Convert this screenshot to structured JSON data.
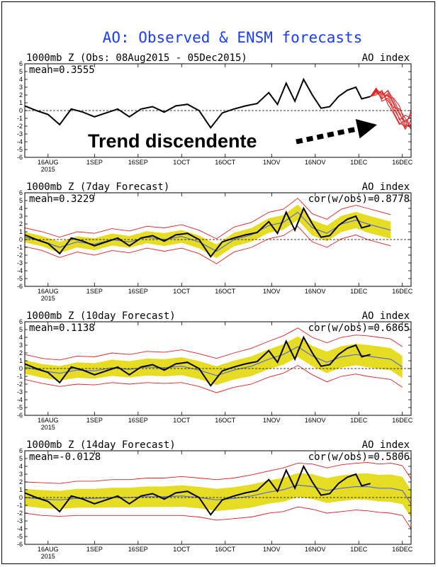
{
  "title": "AO: Observed & ENSM forecasts",
  "annotation": "Trend discendente",
  "colors": {
    "title": "#1a3cff",
    "observed": "#000000",
    "ensemble_mean": "#5a6bd8",
    "spread_fill": "#e6dc23",
    "spread_edge": "#e02020",
    "forecast_members": "#e02020",
    "zero_line": "#000000"
  },
  "axes": {
    "x_ticks": [
      "16AUG",
      "1SEP",
      "16SEP",
      "1OCT",
      "16OCT",
      "1NOV",
      "16NOV",
      "1DEC",
      "16DEC"
    ],
    "x_tick_dates": [
      "2015-08-16",
      "2015-09-01",
      "2015-09-16",
      "2015-10-01",
      "2015-10-16",
      "2015-11-01",
      "2015-11-16",
      "2015-12-01",
      "2015-12-16"
    ],
    "x_year_label": "2015",
    "x_start": "2015-08-08",
    "x_end": "2015-12-19",
    "y_ticks": [
      6,
      5,
      4,
      3,
      2,
      1,
      0,
      -1,
      -2,
      -3,
      -4,
      -5,
      -6
    ],
    "ylim": [
      -6,
      6
    ]
  },
  "chart_data": [
    {
      "type": "line",
      "title": "1000mb Z (Obs: 08Aug2015 - 05Dec2015)",
      "right_label": "AO index",
      "mean_label": "mean=0.3555",
      "cor_label": "",
      "series": [
        {
          "kind": "observed",
          "x": [
            "2015-08-08",
            "2015-08-12",
            "2015-08-16",
            "2015-08-20",
            "2015-08-24",
            "2015-08-28",
            "2015-09-01",
            "2015-09-05",
            "2015-09-09",
            "2015-09-13",
            "2015-09-17",
            "2015-09-21",
            "2015-09-25",
            "2015-09-29",
            "2015-10-03",
            "2015-10-07",
            "2015-10-11",
            "2015-10-15",
            "2015-10-19",
            "2015-10-23",
            "2015-10-27",
            "2015-10-31",
            "2015-11-03",
            "2015-11-06",
            "2015-11-09",
            "2015-11-12",
            "2015-11-15",
            "2015-11-18",
            "2015-11-21",
            "2015-11-24",
            "2015-11-27",
            "2015-11-30",
            "2015-12-02",
            "2015-12-05"
          ],
          "y": [
            0.6,
            0.0,
            -0.5,
            -1.8,
            0.2,
            -0.2,
            -0.8,
            -0.3,
            0.2,
            -0.8,
            0.2,
            0.5,
            -0.2,
            0.6,
            0.8,
            0.0,
            -2.2,
            -0.3,
            0.2,
            0.6,
            0.9,
            2.3,
            0.8,
            3.5,
            1.2,
            4.0,
            2.0,
            0.3,
            0.5,
            1.8,
            2.6,
            3.0,
            1.5,
            1.8
          ]
        },
        {
          "kind": "forecast_members",
          "x": [
            "2015-12-05",
            "2015-12-07",
            "2015-12-09",
            "2015-12-11",
            "2015-12-13",
            "2015-12-15",
            "2015-12-17",
            "2015-12-19"
          ],
          "members": [
            [
              1.8,
              2.8,
              2.0,
              2.5,
              1.0,
              -0.5,
              -1.5,
              -0.5
            ],
            [
              1.8,
              2.4,
              1.6,
              2.0,
              0.2,
              -1.0,
              -2.4,
              -1.2
            ],
            [
              1.8,
              2.9,
              1.2,
              1.6,
              -0.2,
              -1.6,
              -2.0,
              -1.8
            ],
            [
              1.8,
              2.2,
              2.4,
              1.2,
              0.4,
              0.2,
              -1.0,
              -2.0
            ],
            [
              1.8,
              2.6,
              1.8,
              2.6,
              1.4,
              -0.2,
              -2.2,
              0.0
            ],
            [
              1.8,
              2.0,
              2.6,
              0.8,
              -0.4,
              -1.8,
              -1.2,
              -2.4
            ],
            [
              1.8,
              2.5,
              1.5,
              2.2,
              0.8,
              -1.2,
              -0.6,
              -1.0
            ],
            [
              1.8,
              2.7,
              2.2,
              1.8,
              1.6,
              0.6,
              -1.8,
              -2.2
            ]
          ]
        }
      ]
    },
    {
      "type": "line",
      "title": "1000mb Z (7day Forecast)",
      "right_label": "AO index",
      "mean_label": "mean=0.3229",
      "cor_label": "cor(w/obs)=0.8778",
      "series": [
        {
          "kind": "observed",
          "x": [
            "2015-08-08",
            "2015-08-12",
            "2015-08-16",
            "2015-08-20",
            "2015-08-24",
            "2015-08-28",
            "2015-09-01",
            "2015-09-05",
            "2015-09-09",
            "2015-09-13",
            "2015-09-17",
            "2015-09-21",
            "2015-09-25",
            "2015-09-29",
            "2015-10-03",
            "2015-10-07",
            "2015-10-11",
            "2015-10-15",
            "2015-10-19",
            "2015-10-23",
            "2015-10-27",
            "2015-10-31",
            "2015-11-03",
            "2015-11-06",
            "2015-11-09",
            "2015-11-12",
            "2015-11-15",
            "2015-11-18",
            "2015-11-21",
            "2015-11-24",
            "2015-11-27",
            "2015-11-30",
            "2015-12-02",
            "2015-12-05"
          ],
          "y": [
            0.6,
            0.0,
            -0.5,
            -1.8,
            0.2,
            -0.2,
            -0.8,
            -0.3,
            0.2,
            -0.8,
            0.2,
            0.5,
            -0.2,
            0.6,
            0.8,
            0.0,
            -2.2,
            -0.3,
            0.2,
            0.6,
            0.9,
            2.3,
            0.8,
            3.5,
            1.2,
            4.0,
            2.0,
            0.3,
            0.5,
            1.8,
            2.6,
            3.0,
            1.5,
            1.8
          ]
        },
        {
          "kind": "ensemble",
          "x": [
            "2015-08-08",
            "2015-08-14",
            "2015-08-20",
            "2015-08-26",
            "2015-09-01",
            "2015-09-07",
            "2015-09-13",
            "2015-09-19",
            "2015-09-25",
            "2015-10-01",
            "2015-10-07",
            "2015-10-13",
            "2015-10-19",
            "2015-10-25",
            "2015-10-31",
            "2015-11-05",
            "2015-11-10",
            "2015-11-15",
            "2015-11-20",
            "2015-11-25",
            "2015-11-30",
            "2015-12-04",
            "2015-12-08",
            "2015-12-12"
          ],
          "mean": [
            0.3,
            -0.2,
            -1.0,
            -0.3,
            -0.6,
            0.0,
            -0.3,
            0.3,
            0.0,
            0.4,
            -0.3,
            -1.5,
            0.0,
            0.6,
            1.8,
            2.2,
            3.5,
            1.5,
            0.8,
            2.0,
            2.5,
            2.0,
            1.6,
            1.2
          ],
          "spread": [
            1.2,
            1.2,
            1.3,
            1.3,
            1.4,
            1.4,
            1.4,
            1.4,
            1.5,
            1.5,
            1.5,
            1.6,
            1.6,
            1.6,
            1.7,
            1.7,
            1.8,
            1.8,
            1.8,
            1.9,
            1.9,
            2.0,
            2.0,
            2.0
          ]
        }
      ]
    },
    {
      "type": "line",
      "title": "1000mb Z (10day Forecast)",
      "right_label": "AO index",
      "mean_label": "mean=0.1138",
      "cor_label": "cor(w/obs)=0.6865",
      "series": [
        {
          "kind": "observed",
          "x": [
            "2015-08-08",
            "2015-08-12",
            "2015-08-16",
            "2015-08-20",
            "2015-08-24",
            "2015-08-28",
            "2015-09-01",
            "2015-09-05",
            "2015-09-09",
            "2015-09-13",
            "2015-09-17",
            "2015-09-21",
            "2015-09-25",
            "2015-09-29",
            "2015-10-03",
            "2015-10-07",
            "2015-10-11",
            "2015-10-15",
            "2015-10-19",
            "2015-10-23",
            "2015-10-27",
            "2015-10-31",
            "2015-11-03",
            "2015-11-06",
            "2015-11-09",
            "2015-11-12",
            "2015-11-15",
            "2015-11-18",
            "2015-11-21",
            "2015-11-24",
            "2015-11-27",
            "2015-11-30",
            "2015-12-02",
            "2015-12-05"
          ],
          "y": [
            0.6,
            0.0,
            -0.5,
            -1.8,
            0.2,
            -0.2,
            -0.8,
            -0.3,
            0.2,
            -0.8,
            0.2,
            0.5,
            -0.2,
            0.6,
            0.8,
            0.0,
            -2.2,
            -0.3,
            0.2,
            0.6,
            0.9,
            2.3,
            0.8,
            3.5,
            1.2,
            4.0,
            2.0,
            0.3,
            0.5,
            1.8,
            2.6,
            3.0,
            1.5,
            1.8
          ]
        },
        {
          "kind": "ensemble",
          "x": [
            "2015-08-08",
            "2015-08-14",
            "2015-08-20",
            "2015-08-26",
            "2015-09-01",
            "2015-09-07",
            "2015-09-13",
            "2015-09-19",
            "2015-09-25",
            "2015-10-01",
            "2015-10-07",
            "2015-10-13",
            "2015-10-19",
            "2015-10-25",
            "2015-10-31",
            "2015-11-05",
            "2015-11-10",
            "2015-11-15",
            "2015-11-20",
            "2015-11-25",
            "2015-11-30",
            "2015-12-04",
            "2015-12-08",
            "2015-12-12",
            "2015-12-16"
          ],
          "mean": [
            0.2,
            -0.3,
            -0.6,
            -0.2,
            -0.3,
            0.1,
            -0.1,
            0.2,
            0.1,
            0.3,
            -0.2,
            -0.9,
            -0.2,
            0.3,
            1.2,
            1.8,
            2.8,
            1.6,
            0.8,
            1.5,
            1.8,
            1.6,
            1.4,
            1.2,
            0.2
          ],
          "spread": [
            1.6,
            1.6,
            1.7,
            1.8,
            1.8,
            1.9,
            1.9,
            2.0,
            2.0,
            2.1,
            2.1,
            2.2,
            2.2,
            2.3,
            2.3,
            2.4,
            2.4,
            2.4,
            2.5,
            2.5,
            2.5,
            2.6,
            2.6,
            2.6,
            2.6
          ]
        }
      ]
    },
    {
      "type": "line",
      "title": "1000mb Z (14day Forecast)",
      "right_label": "AO index",
      "mean_label": "mean=-0.0128",
      "cor_label": "cor(w/obs)=0.5806",
      "series": [
        {
          "kind": "observed",
          "x": [
            "2015-08-08",
            "2015-08-12",
            "2015-08-16",
            "2015-08-20",
            "2015-08-24",
            "2015-08-28",
            "2015-09-01",
            "2015-09-05",
            "2015-09-09",
            "2015-09-13",
            "2015-09-17",
            "2015-09-21",
            "2015-09-25",
            "2015-09-29",
            "2015-10-03",
            "2015-10-07",
            "2015-10-11",
            "2015-10-15",
            "2015-10-19",
            "2015-10-23",
            "2015-10-27",
            "2015-10-31",
            "2015-11-03",
            "2015-11-06",
            "2015-11-09",
            "2015-11-12",
            "2015-11-15",
            "2015-11-18",
            "2015-11-21",
            "2015-11-24",
            "2015-11-27",
            "2015-11-30",
            "2015-12-02",
            "2015-12-05"
          ],
          "y": [
            0.6,
            0.0,
            -0.5,
            -1.8,
            0.2,
            -0.2,
            -0.8,
            -0.3,
            0.2,
            -0.8,
            0.2,
            0.5,
            -0.2,
            0.6,
            0.8,
            0.0,
            -2.2,
            -0.3,
            0.2,
            0.6,
            0.9,
            2.3,
            0.8,
            3.5,
            1.2,
            4.0,
            2.0,
            0.3,
            0.5,
            1.8,
            2.6,
            3.0,
            1.5,
            1.8
          ]
        },
        {
          "kind": "ensemble",
          "x": [
            "2015-08-08",
            "2015-08-14",
            "2015-08-20",
            "2015-08-26",
            "2015-09-01",
            "2015-09-07",
            "2015-09-13",
            "2015-09-19",
            "2015-09-25",
            "2015-10-01",
            "2015-10-07",
            "2015-10-13",
            "2015-10-19",
            "2015-10-25",
            "2015-10-31",
            "2015-11-05",
            "2015-11-10",
            "2015-11-15",
            "2015-11-20",
            "2015-11-25",
            "2015-11-30",
            "2015-12-04",
            "2015-12-08",
            "2015-12-12",
            "2015-12-16",
            "2015-12-19"
          ],
          "mean": [
            0.0,
            -0.2,
            -0.3,
            -0.1,
            -0.1,
            0.0,
            0.0,
            0.1,
            0.1,
            0.2,
            0.0,
            -0.3,
            -0.1,
            0.2,
            0.7,
            1.0,
            1.6,
            1.4,
            0.9,
            1.2,
            1.4,
            1.4,
            1.2,
            1.2,
            0.9,
            -0.8
          ],
          "spread": [
            2.0,
            2.1,
            2.1,
            2.2,
            2.2,
            2.3,
            2.3,
            2.4,
            2.4,
            2.5,
            2.5,
            2.6,
            2.6,
            2.7,
            2.7,
            2.8,
            2.8,
            2.9,
            2.9,
            3.0,
            3.0,
            3.1,
            3.1,
            3.2,
            3.2,
            3.2
          ]
        }
      ]
    }
  ]
}
